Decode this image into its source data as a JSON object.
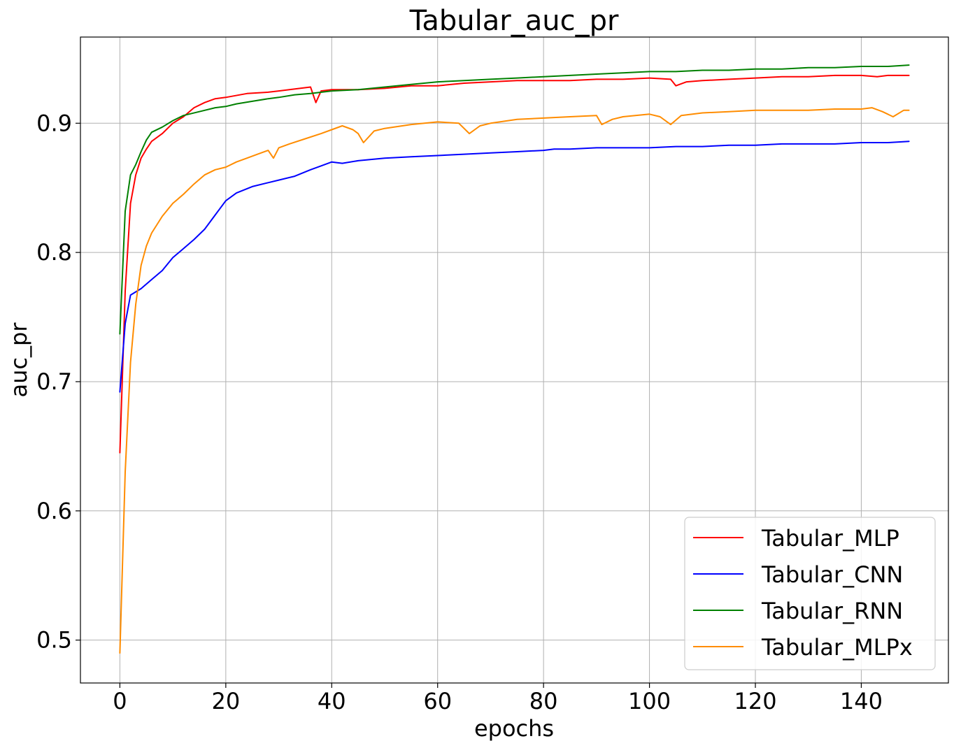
{
  "chart_data": {
    "type": "line",
    "title": "Tabular_auc_pr",
    "xlabel": "epochs",
    "ylabel": "auc_pr",
    "xlim": [
      -7.45,
      156.45
    ],
    "ylim": [
      0.4668,
      0.9667
    ],
    "xticks": [
      0,
      20,
      40,
      60,
      80,
      100,
      120,
      140
    ],
    "yticks": [
      0.5,
      0.6,
      0.7,
      0.8,
      0.9
    ],
    "xtick_labels": [
      "0",
      "20",
      "40",
      "60",
      "80",
      "100",
      "120",
      "140"
    ],
    "ytick_labels": [
      "0.5",
      "0.6",
      "0.7",
      "0.8",
      "0.9"
    ],
    "grid": true,
    "legend_position": "lower-right",
    "series": [
      {
        "name": "Tabular_MLP",
        "color": "#ff0000",
        "points": [
          [
            0,
            0.645
          ],
          [
            1,
            0.77
          ],
          [
            2,
            0.838
          ],
          [
            3,
            0.86
          ],
          [
            4,
            0.873
          ],
          [
            5,
            0.88
          ],
          [
            6,
            0.886
          ],
          [
            8,
            0.892
          ],
          [
            10,
            0.9
          ],
          [
            12,
            0.905
          ],
          [
            14,
            0.912
          ],
          [
            16,
            0.916
          ],
          [
            18,
            0.919
          ],
          [
            20,
            0.92
          ],
          [
            24,
            0.923
          ],
          [
            28,
            0.924
          ],
          [
            30,
            0.925
          ],
          [
            34,
            0.927
          ],
          [
            36,
            0.928
          ],
          [
            37,
            0.916
          ],
          [
            38,
            0.925
          ],
          [
            40,
            0.926
          ],
          [
            45,
            0.926
          ],
          [
            50,
            0.927
          ],
          [
            55,
            0.929
          ],
          [
            60,
            0.929
          ],
          [
            65,
            0.931
          ],
          [
            70,
            0.932
          ],
          [
            75,
            0.933
          ],
          [
            80,
            0.933
          ],
          [
            85,
            0.933
          ],
          [
            90,
            0.934
          ],
          [
            95,
            0.934
          ],
          [
            100,
            0.935
          ],
          [
            104,
            0.934
          ],
          [
            105,
            0.929
          ],
          [
            107,
            0.932
          ],
          [
            110,
            0.933
          ],
          [
            115,
            0.934
          ],
          [
            120,
            0.935
          ],
          [
            125,
            0.936
          ],
          [
            130,
            0.936
          ],
          [
            135,
            0.937
          ],
          [
            140,
            0.937
          ],
          [
            143,
            0.936
          ],
          [
            145,
            0.937
          ],
          [
            149,
            0.937
          ]
        ]
      },
      {
        "name": "Tabular_CNN",
        "color": "#0000ff",
        "points": [
          [
            0,
            0.692
          ],
          [
            1,
            0.745
          ],
          [
            2,
            0.767
          ],
          [
            4,
            0.772
          ],
          [
            6,
            0.779
          ],
          [
            8,
            0.786
          ],
          [
            10,
            0.796
          ],
          [
            12,
            0.803
          ],
          [
            14,
            0.81
          ],
          [
            16,
            0.818
          ],
          [
            18,
            0.829
          ],
          [
            20,
            0.84
          ],
          [
            22,
            0.846
          ],
          [
            25,
            0.851
          ],
          [
            28,
            0.854
          ],
          [
            30,
            0.856
          ],
          [
            33,
            0.859
          ],
          [
            36,
            0.864
          ],
          [
            38,
            0.867
          ],
          [
            40,
            0.87
          ],
          [
            42,
            0.869
          ],
          [
            45,
            0.871
          ],
          [
            50,
            0.873
          ],
          [
            55,
            0.874
          ],
          [
            60,
            0.875
          ],
          [
            65,
            0.876
          ],
          [
            70,
            0.877
          ],
          [
            75,
            0.878
          ],
          [
            80,
            0.879
          ],
          [
            82,
            0.88
          ],
          [
            85,
            0.88
          ],
          [
            90,
            0.881
          ],
          [
            95,
            0.881
          ],
          [
            100,
            0.881
          ],
          [
            105,
            0.882
          ],
          [
            110,
            0.882
          ],
          [
            115,
            0.883
          ],
          [
            120,
            0.883
          ],
          [
            125,
            0.884
          ],
          [
            130,
            0.884
          ],
          [
            135,
            0.884
          ],
          [
            140,
            0.885
          ],
          [
            145,
            0.885
          ],
          [
            149,
            0.886
          ]
        ]
      },
      {
        "name": "Tabular_RNN",
        "color": "#008000",
        "points": [
          [
            0,
            0.737
          ],
          [
            1,
            0.832
          ],
          [
            2,
            0.86
          ],
          [
            3,
            0.868
          ],
          [
            4,
            0.878
          ],
          [
            5,
            0.887
          ],
          [
            6,
            0.893
          ],
          [
            8,
            0.897
          ],
          [
            10,
            0.902
          ],
          [
            12,
            0.906
          ],
          [
            15,
            0.909
          ],
          [
            18,
            0.912
          ],
          [
            20,
            0.913
          ],
          [
            22,
            0.915
          ],
          [
            25,
            0.917
          ],
          [
            28,
            0.919
          ],
          [
            30,
            0.92
          ],
          [
            33,
            0.922
          ],
          [
            36,
            0.923
          ],
          [
            40,
            0.925
          ],
          [
            45,
            0.926
          ],
          [
            50,
            0.928
          ],
          [
            55,
            0.93
          ],
          [
            60,
            0.932
          ],
          [
            65,
            0.933
          ],
          [
            70,
            0.934
          ],
          [
            75,
            0.935
          ],
          [
            80,
            0.936
          ],
          [
            85,
            0.937
          ],
          [
            90,
            0.938
          ],
          [
            95,
            0.939
          ],
          [
            100,
            0.94
          ],
          [
            105,
            0.94
          ],
          [
            110,
            0.941
          ],
          [
            115,
            0.941
          ],
          [
            120,
            0.942
          ],
          [
            125,
            0.942
          ],
          [
            130,
            0.943
          ],
          [
            135,
            0.943
          ],
          [
            140,
            0.944
          ],
          [
            145,
            0.944
          ],
          [
            149,
            0.945
          ]
        ]
      },
      {
        "name": "Tabular_MLPx",
        "color": "#ff8c00",
        "points": [
          [
            0,
            0.49
          ],
          [
            1,
            0.63
          ],
          [
            2,
            0.715
          ],
          [
            3,
            0.76
          ],
          [
            4,
            0.79
          ],
          [
            5,
            0.805
          ],
          [
            6,
            0.815
          ],
          [
            8,
            0.828
          ],
          [
            10,
            0.838
          ],
          [
            12,
            0.845
          ],
          [
            14,
            0.853
          ],
          [
            16,
            0.86
          ],
          [
            18,
            0.864
          ],
          [
            20,
            0.866
          ],
          [
            22,
            0.87
          ],
          [
            24,
            0.873
          ],
          [
            26,
            0.876
          ],
          [
            28,
            0.879
          ],
          [
            29,
            0.873
          ],
          [
            30,
            0.881
          ],
          [
            32,
            0.884
          ],
          [
            35,
            0.888
          ],
          [
            38,
            0.892
          ],
          [
            40,
            0.895
          ],
          [
            42,
            0.898
          ],
          [
            44,
            0.895
          ],
          [
            45,
            0.892
          ],
          [
            46,
            0.885
          ],
          [
            48,
            0.894
          ],
          [
            50,
            0.896
          ],
          [
            55,
            0.899
          ],
          [
            60,
            0.901
          ],
          [
            64,
            0.9
          ],
          [
            66,
            0.892
          ],
          [
            68,
            0.898
          ],
          [
            70,
            0.9
          ],
          [
            75,
            0.903
          ],
          [
            80,
            0.904
          ],
          [
            85,
            0.905
          ],
          [
            90,
            0.906
          ],
          [
            91,
            0.899
          ],
          [
            93,
            0.903
          ],
          [
            95,
            0.905
          ],
          [
            100,
            0.907
          ],
          [
            102,
            0.905
          ],
          [
            104,
            0.899
          ],
          [
            106,
            0.906
          ],
          [
            110,
            0.908
          ],
          [
            115,
            0.909
          ],
          [
            120,
            0.91
          ],
          [
            125,
            0.91
          ],
          [
            130,
            0.91
          ],
          [
            135,
            0.911
          ],
          [
            140,
            0.911
          ],
          [
            142,
            0.912
          ],
          [
            144,
            0.909
          ],
          [
            146,
            0.905
          ],
          [
            148,
            0.91
          ],
          [
            149,
            0.91
          ]
        ]
      }
    ]
  }
}
